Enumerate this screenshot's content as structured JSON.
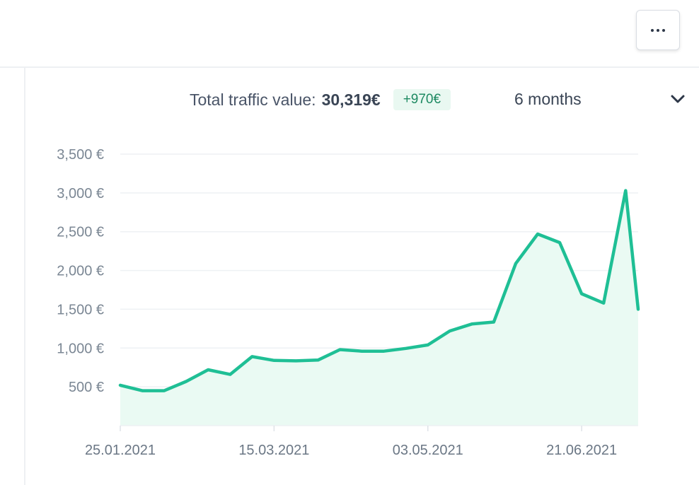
{
  "summary": {
    "label": "Total traffic value:",
    "value": "30,319€",
    "delta": "+970€"
  },
  "period": {
    "selected": "6 months"
  },
  "icons": {
    "more": "more-horizontal-icon",
    "period_toggle": "chevron-down-icon"
  },
  "colors": {
    "line": "#1fbf95",
    "fill": "#eafaf3",
    "grid": "#eef1f4",
    "delta_bg": "#e9f8f1",
    "delta_text": "#1e8a62"
  },
  "chart_data": {
    "type": "area",
    "x": [
      "25.01.2021",
      "01.02.2021",
      "08.02.2021",
      "15.02.2021",
      "22.02.2021",
      "01.03.2021",
      "08.03.2021",
      "15.03.2021",
      "22.03.2021",
      "29.03.2021",
      "05.04.2021",
      "12.04.2021",
      "19.04.2021",
      "26.04.2021",
      "03.05.2021",
      "10.05.2021",
      "17.05.2021",
      "24.05.2021",
      "31.05.2021",
      "07.06.2021",
      "14.06.2021",
      "21.06.2021",
      "28.06.2021",
      "05.07.2021",
      "09.07.2021"
    ],
    "series": [
      {
        "values": [
          520,
          450,
          450,
          570,
          720,
          660,
          890,
          840,
          835,
          845,
          980,
          960,
          960,
          995,
          1040,
          1220,
          1310,
          1335,
          2090,
          2470,
          2360,
          1700,
          1580,
          3030,
          1500
        ]
      }
    ],
    "x_ticks": [
      "25.01.2021",
      "15.03.2021",
      "03.05.2021",
      "21.06.2021"
    ],
    "y_ticks": [
      500,
      1000,
      1500,
      2000,
      2500,
      3000,
      3500
    ],
    "y_tick_labels": [
      "500 €",
      "1,000 €",
      "1,500 €",
      "2,000 €",
      "2,500 €",
      "3,000 €",
      "3,500 €"
    ],
    "ylim": [
      0,
      3500
    ],
    "grid": true,
    "legend": "none",
    "title": "",
    "xlabel": "",
    "ylabel": ""
  }
}
